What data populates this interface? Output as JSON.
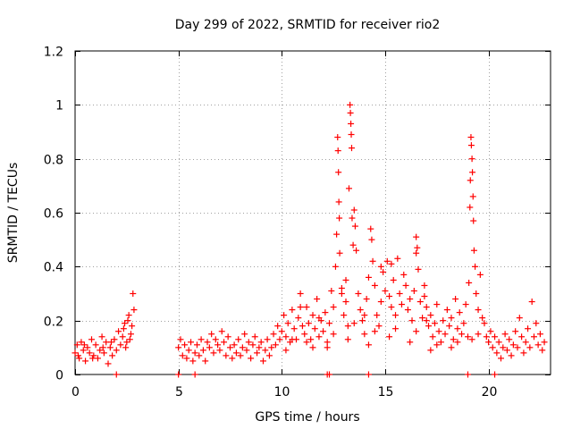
{
  "chart_data": {
    "type": "scatter",
    "title": "Day 299 of 2022, SRMTID for receiver rio2",
    "xlabel": "GPS time / hours",
    "ylabel": "SRMTID / TECUs",
    "xlim": [
      0,
      23
    ],
    "ylim": [
      0,
      1.2
    ],
    "x_ticks": [
      0,
      5,
      10,
      15,
      20
    ],
    "x_tick_labels": [
      "0",
      "5",
      "10",
      "15",
      "20"
    ],
    "y_ticks": [
      0,
      0.2,
      0.4,
      0.6,
      0.8,
      1.0,
      1.2
    ],
    "y_tick_labels": [
      "0",
      "0.2",
      "0.4",
      "0.6",
      "0.8",
      "1",
      "1.2"
    ],
    "grid": true,
    "marker": "+",
    "color": "#ff0000",
    "series": [
      {
        "name": "SRMTID",
        "points": [
          [
            0.0,
            0.08
          ],
          [
            0.1,
            0.11
          ],
          [
            0.2,
            0.06
          ],
          [
            0.3,
            0.12
          ],
          [
            0.4,
            0.09
          ],
          [
            0.5,
            0.05
          ],
          [
            0.6,
            0.1
          ],
          [
            0.7,
            0.08
          ],
          [
            0.8,
            0.13
          ],
          [
            0.9,
            0.07
          ],
          [
            1.0,
            0.11
          ],
          [
            1.1,
            0.06
          ],
          [
            1.2,
            0.09
          ],
          [
            1.3,
            0.14
          ],
          [
            1.4,
            0.08
          ],
          [
            1.5,
            0.12
          ],
          [
            1.6,
            0.04
          ],
          [
            1.7,
            0.1
          ],
          [
            1.8,
            0.07
          ],
          [
            1.9,
            0.13
          ],
          [
            2.0,
            0.09
          ],
          [
            2.1,
            0.16
          ],
          [
            2.2,
            0.11
          ],
          [
            2.3,
            0.14
          ],
          [
            2.4,
            0.19
          ],
          [
            2.5,
            0.12
          ],
          [
            2.6,
            0.22
          ],
          [
            2.7,
            0.15
          ],
          [
            2.8,
            0.3
          ],
          [
            2.85,
            0.24
          ],
          [
            2.75,
            0.18
          ],
          [
            2.65,
            0.13
          ],
          [
            2.55,
            0.2
          ],
          [
            2.45,
            0.1
          ],
          [
            2.35,
            0.17
          ],
          [
            0.15,
            0.07
          ],
          [
            0.45,
            0.11
          ],
          [
            0.85,
            0.06
          ],
          [
            1.35,
            0.1
          ],
          [
            1.75,
            0.12
          ],
          [
            2.0,
            0.0
          ],
          [
            5.0,
            0.0
          ],
          [
            5.8,
            0.0
          ],
          [
            12.2,
            0.0
          ],
          [
            12.3,
            0.0
          ],
          [
            14.2,
            0.0
          ],
          [
            19.0,
            0.0
          ],
          [
            20.3,
            0.0
          ],
          [
            5.0,
            0.1
          ],
          [
            5.1,
            0.13
          ],
          [
            5.2,
            0.07
          ],
          [
            5.3,
            0.11
          ],
          [
            5.4,
            0.06
          ],
          [
            5.5,
            0.09
          ],
          [
            5.6,
            0.12
          ],
          [
            5.7,
            0.05
          ],
          [
            5.8,
            0.08
          ],
          [
            5.9,
            0.11
          ],
          [
            6.0,
            0.07
          ],
          [
            6.1,
            0.13
          ],
          [
            6.2,
            0.09
          ],
          [
            6.3,
            0.05
          ],
          [
            6.4,
            0.12
          ],
          [
            6.5,
            0.1
          ],
          [
            6.6,
            0.15
          ],
          [
            6.7,
            0.08
          ],
          [
            6.8,
            0.13
          ],
          [
            6.9,
            0.11
          ],
          [
            7.0,
            0.09
          ],
          [
            7.1,
            0.16
          ],
          [
            7.2,
            0.12
          ],
          [
            7.3,
            0.07
          ],
          [
            7.4,
            0.14
          ],
          [
            7.5,
            0.1
          ],
          [
            7.6,
            0.06
          ],
          [
            7.7,
            0.11
          ],
          [
            7.8,
            0.08
          ],
          [
            7.9,
            0.13
          ],
          [
            8.0,
            0.07
          ],
          [
            8.1,
            0.1
          ],
          [
            8.2,
            0.15
          ],
          [
            8.3,
            0.09
          ],
          [
            8.4,
            0.12
          ],
          [
            8.5,
            0.06
          ],
          [
            8.6,
            0.11
          ],
          [
            8.7,
            0.14
          ],
          [
            8.8,
            0.08
          ],
          [
            8.9,
            0.1
          ],
          [
            9.0,
            0.12
          ],
          [
            9.1,
            0.05
          ],
          [
            9.2,
            0.09
          ],
          [
            9.3,
            0.13
          ],
          [
            9.4,
            0.07
          ],
          [
            9.5,
            0.1
          ],
          [
            9.6,
            0.15
          ],
          [
            9.7,
            0.11
          ],
          [
            9.8,
            0.18
          ],
          [
            9.9,
            0.13
          ],
          [
            10.0,
            0.16
          ],
          [
            10.1,
            0.22
          ],
          [
            10.2,
            0.14
          ],
          [
            10.3,
            0.19
          ],
          [
            10.4,
            0.12
          ],
          [
            10.5,
            0.24
          ],
          [
            10.6,
            0.17
          ],
          [
            10.7,
            0.13
          ],
          [
            10.8,
            0.21
          ],
          [
            10.9,
            0.3
          ],
          [
            11.0,
            0.18
          ],
          [
            11.1,
            0.15
          ],
          [
            11.2,
            0.25
          ],
          [
            11.3,
            0.19
          ],
          [
            11.4,
            0.13
          ],
          [
            11.5,
            0.22
          ],
          [
            11.6,
            0.17
          ],
          [
            11.7,
            0.28
          ],
          [
            11.8,
            0.14
          ],
          [
            11.9,
            0.2
          ],
          [
            12.0,
            0.16
          ],
          [
            12.1,
            0.23
          ],
          [
            12.2,
            0.12
          ],
          [
            12.3,
            0.19
          ],
          [
            12.4,
            0.31
          ],
          [
            12.5,
            0.25
          ],
          [
            12.6,
            0.4
          ],
          [
            12.65,
            0.52
          ],
          [
            12.7,
            0.88
          ],
          [
            12.72,
            0.83
          ],
          [
            12.74,
            0.75
          ],
          [
            12.76,
            0.64
          ],
          [
            12.78,
            0.58
          ],
          [
            12.8,
            0.45
          ],
          [
            12.9,
            0.3
          ],
          [
            13.0,
            0.22
          ],
          [
            13.1,
            0.35
          ],
          [
            13.2,
            0.18
          ],
          [
            13.25,
            0.69
          ],
          [
            13.3,
            1.0
          ],
          [
            13.32,
            0.97
          ],
          [
            13.34,
            0.93
          ],
          [
            13.36,
            0.89
          ],
          [
            13.38,
            0.84
          ],
          [
            13.4,
            0.58
          ],
          [
            13.45,
            0.48
          ],
          [
            13.5,
            0.61
          ],
          [
            13.55,
            0.55
          ],
          [
            13.6,
            0.46
          ],
          [
            13.7,
            0.3
          ],
          [
            13.8,
            0.24
          ],
          [
            13.9,
            0.2
          ],
          [
            14.0,
            0.15
          ],
          [
            14.1,
            0.28
          ],
          [
            14.2,
            0.36
          ],
          [
            14.3,
            0.54
          ],
          [
            14.35,
            0.5
          ],
          [
            14.4,
            0.42
          ],
          [
            14.5,
            0.33
          ],
          [
            14.6,
            0.22
          ],
          [
            14.7,
            0.18
          ],
          [
            14.8,
            0.27
          ],
          [
            14.9,
            0.38
          ],
          [
            15.0,
            0.31
          ],
          [
            15.1,
            0.42
          ],
          [
            15.2,
            0.29
          ],
          [
            15.3,
            0.25
          ],
          [
            15.4,
            0.35
          ],
          [
            15.5,
            0.22
          ],
          [
            15.6,
            0.43
          ],
          [
            15.7,
            0.3
          ],
          [
            15.8,
            0.26
          ],
          [
            15.9,
            0.37
          ],
          [
            16.0,
            0.33
          ],
          [
            16.1,
            0.24
          ],
          [
            16.2,
            0.28
          ],
          [
            16.3,
            0.2
          ],
          [
            16.4,
            0.31
          ],
          [
            16.5,
            0.51
          ],
          [
            16.55,
            0.47
          ],
          [
            16.6,
            0.39
          ],
          [
            16.7,
            0.27
          ],
          [
            16.8,
            0.21
          ],
          [
            16.9,
            0.33
          ],
          [
            17.0,
            0.25
          ],
          [
            17.1,
            0.18
          ],
          [
            17.2,
            0.22
          ],
          [
            17.3,
            0.14
          ],
          [
            17.4,
            0.19
          ],
          [
            17.5,
            0.26
          ],
          [
            17.6,
            0.16
          ],
          [
            17.7,
            0.12
          ],
          [
            17.8,
            0.2
          ],
          [
            17.9,
            0.15
          ],
          [
            18.0,
            0.24
          ],
          [
            18.1,
            0.18
          ],
          [
            18.2,
            0.21
          ],
          [
            18.3,
            0.13
          ],
          [
            18.4,
            0.28
          ],
          [
            18.5,
            0.17
          ],
          [
            18.6,
            0.23
          ],
          [
            18.7,
            0.15
          ],
          [
            18.8,
            0.19
          ],
          [
            18.9,
            0.26
          ],
          [
            19.0,
            0.14
          ],
          [
            19.05,
            0.34
          ],
          [
            19.1,
            0.62
          ],
          [
            19.12,
            0.72
          ],
          [
            19.15,
            0.88
          ],
          [
            19.17,
            0.85
          ],
          [
            19.2,
            0.8
          ],
          [
            19.22,
            0.75
          ],
          [
            19.25,
            0.66
          ],
          [
            19.27,
            0.57
          ],
          [
            19.3,
            0.46
          ],
          [
            19.35,
            0.4
          ],
          [
            19.4,
            0.3
          ],
          [
            19.5,
            0.24
          ],
          [
            19.6,
            0.37
          ],
          [
            19.7,
            0.21
          ],
          [
            19.8,
            0.19
          ],
          [
            19.9,
            0.14
          ],
          [
            20.0,
            0.12
          ],
          [
            20.1,
            0.16
          ],
          [
            20.2,
            0.1
          ],
          [
            20.3,
            0.14
          ],
          [
            20.4,
            0.08
          ],
          [
            20.5,
            0.12
          ],
          [
            20.6,
            0.06
          ],
          [
            20.7,
            0.1
          ],
          [
            20.8,
            0.15
          ],
          [
            20.9,
            0.09
          ],
          [
            21.0,
            0.13
          ],
          [
            21.1,
            0.07
          ],
          [
            21.2,
            0.11
          ],
          [
            21.3,
            0.16
          ],
          [
            21.4,
            0.1
          ],
          [
            21.5,
            0.21
          ],
          [
            21.6,
            0.14
          ],
          [
            21.7,
            0.08
          ],
          [
            21.8,
            0.12
          ],
          [
            21.9,
            0.17
          ],
          [
            22.0,
            0.1
          ],
          [
            22.1,
            0.27
          ],
          [
            22.2,
            0.14
          ],
          [
            22.3,
            0.19
          ],
          [
            22.4,
            0.11
          ],
          [
            22.5,
            0.15
          ],
          [
            22.6,
            0.09
          ],
          [
            22.7,
            0.12
          ],
          [
            10.5,
            0.13
          ],
          [
            11.5,
            0.1
          ],
          [
            12.5,
            0.15
          ],
          [
            13.5,
            0.19
          ],
          [
            14.5,
            0.16
          ],
          [
            15.5,
            0.17
          ],
          [
            16.5,
            0.16
          ],
          [
            17.5,
            0.11
          ],
          [
            18.5,
            0.12
          ],
          [
            19.5,
            0.15
          ],
          [
            10.2,
            0.09
          ],
          [
            11.2,
            0.12
          ],
          [
            12.2,
            0.1
          ],
          [
            13.2,
            0.13
          ],
          [
            14.2,
            0.11
          ],
          [
            15.2,
            0.14
          ],
          [
            16.2,
            0.12
          ],
          [
            17.2,
            0.09
          ],
          [
            18.2,
            0.1
          ],
          [
            19.2,
            0.13
          ],
          [
            14.8,
            0.4
          ],
          [
            15.3,
            0.41
          ],
          [
            16.5,
            0.45
          ],
          [
            12.9,
            0.32
          ],
          [
            13.1,
            0.27
          ],
          [
            14.0,
            0.22
          ],
          [
            10.9,
            0.25
          ],
          [
            11.8,
            0.21
          ],
          [
            16.9,
            0.29
          ],
          [
            17.0,
            0.2
          ]
        ]
      }
    ]
  }
}
